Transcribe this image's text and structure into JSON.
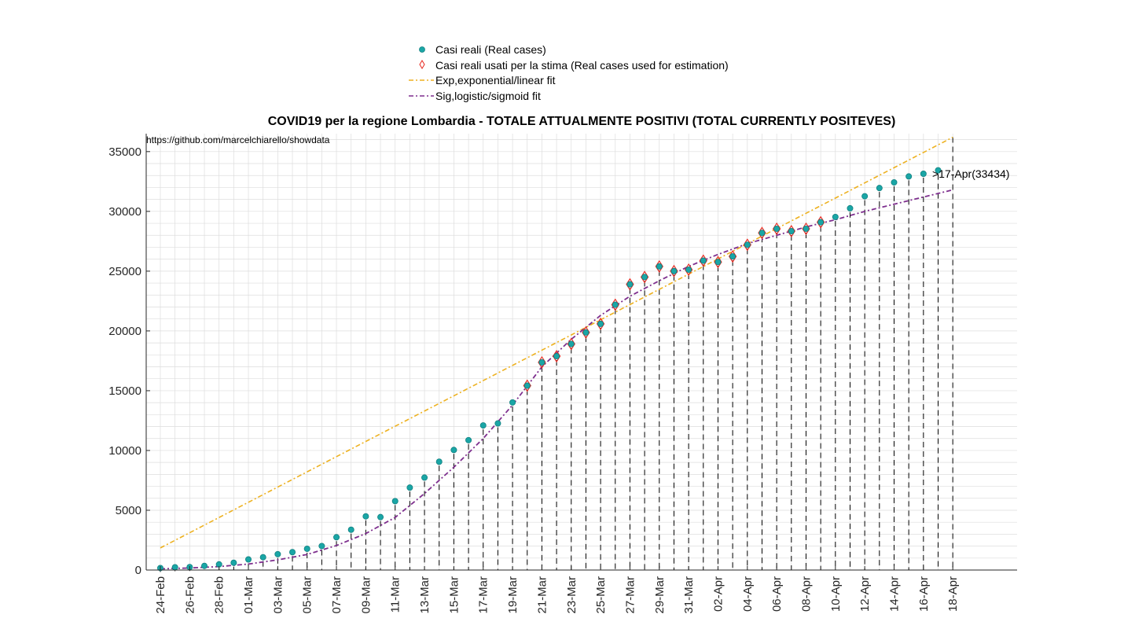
{
  "chart_data": {
    "type": "scatter",
    "title": "COVID19 per la regione Lombardia - TOTALE ATTUALMENTE POSITIVI (TOTAL CURRENTLY POSITEVES)",
    "source_note": "https://github.com/marcelchiarello/showdata",
    "annotation": ">17-Apr(33434)",
    "xlabel": "",
    "ylabel": "",
    "x_tick_labels": [
      "24-Feb",
      "26-Feb",
      "28-Feb",
      "01-Mar",
      "03-Mar",
      "05-Mar",
      "07-Mar",
      "09-Mar",
      "11-Mar",
      "13-Mar",
      "15-Mar",
      "17-Mar",
      "19-Mar",
      "21-Mar",
      "23-Mar",
      "25-Mar",
      "27-Mar",
      "29-Mar",
      "31-Mar",
      "02-Apr",
      "04-Apr",
      "06-Apr",
      "08-Apr",
      "10-Apr",
      "12-Apr",
      "14-Apr",
      "16-Apr",
      "18-Apr"
    ],
    "y_ticks": [
      0,
      5000,
      10000,
      15000,
      20000,
      25000,
      30000,
      35000
    ],
    "ylim": [
      0,
      36500
    ],
    "grid": true,
    "legend": {
      "placement": "top-center",
      "entries": [
        "Casi reali (Real cases)",
        "Casi reali usati per la stima (Real cases used for estimation)",
        "Exp,exponential/linear fit",
        "Sig,logistic/sigmoid fit"
      ]
    },
    "colors": {
      "real": "#1aa6a6",
      "estimation": "#e8281f",
      "exp_fit": "#edb120",
      "sig_fit": "#7e2f8e",
      "grid": "#dddddd",
      "axis": "#262626"
    },
    "series": [
      {
        "name": "Casi reali (Real cases)",
        "x": [
          "24-Feb",
          "25-Feb",
          "26-Feb",
          "27-Feb",
          "28-Feb",
          "29-Feb",
          "01-Mar",
          "02-Mar",
          "03-Mar",
          "04-Mar",
          "05-Mar",
          "06-Mar",
          "07-Mar",
          "08-Mar",
          "09-Mar",
          "10-Mar",
          "11-Mar",
          "12-Mar",
          "13-Mar",
          "14-Mar",
          "15-Mar",
          "16-Mar",
          "17-Mar",
          "18-Mar",
          "19-Mar",
          "20-Mar",
          "21-Mar",
          "22-Mar",
          "23-Mar",
          "24-Mar",
          "25-Mar",
          "26-Mar",
          "27-Mar",
          "28-Mar",
          "29-Mar",
          "30-Mar",
          "31-Mar",
          "01-Apr",
          "02-Apr",
          "03-Apr",
          "04-Apr",
          "05-Apr",
          "06-Apr",
          "07-Apr",
          "08-Apr",
          "09-Apr",
          "10-Apr",
          "11-Apr",
          "12-Apr",
          "13-Apr",
          "14-Apr",
          "15-Apr",
          "16-Apr",
          "17-Apr"
        ],
        "y": [
          166,
          231,
          249,
          349,
          474,
          611,
          887,
          1070,
          1326,
          1497,
          1777,
          2008,
          2742,
          3372,
          4490,
          4427,
          5763,
          6896,
          7732,
          9059,
          10043,
          10861,
          12095,
          12266,
          14019,
          15420,
          17370,
          17885,
          18910,
          19868,
          20591,
          22189,
          23895,
          24509,
          25392,
          25006,
          25124,
          25876,
          25765,
          26229,
          27206,
          28195,
          28545,
          28343,
          28545,
          29091,
          29530,
          30258,
          31265,
          31951,
          32426,
          32921,
          33145,
          33434
        ]
      },
      {
        "name": "Casi reali usati per la stima (Real cases used for estimation)",
        "x": [
          "20-Mar",
          "21-Mar",
          "22-Mar",
          "23-Mar",
          "24-Mar",
          "25-Mar",
          "26-Mar",
          "27-Mar",
          "28-Mar",
          "29-Mar",
          "30-Mar",
          "31-Mar",
          "01-Apr",
          "02-Apr",
          "03-Apr",
          "04-Apr",
          "05-Apr",
          "06-Apr",
          "07-Apr",
          "08-Apr",
          "09-Apr"
        ],
        "y": [
          15420,
          17370,
          17885,
          18910,
          19868,
          20591,
          22189,
          23895,
          24509,
          25392,
          25006,
          25124,
          25876,
          25765,
          26229,
          27206,
          28195,
          28545,
          28343,
          28545,
          29091
        ]
      },
      {
        "name": "Exp,exponential/linear fit",
        "x": [
          "24-Feb",
          "18-Apr"
        ],
        "y": [
          1850,
          36200
        ]
      },
      {
        "name": "Sig,logistic/sigmoid fit",
        "x": [
          "24-Feb",
          "26-Feb",
          "28-Feb",
          "01-Mar",
          "03-Mar",
          "05-Mar",
          "07-Mar",
          "09-Mar",
          "11-Mar",
          "13-Mar",
          "15-Mar",
          "17-Mar",
          "19-Mar",
          "21-Mar",
          "23-Mar",
          "25-Mar",
          "27-Mar",
          "29-Mar",
          "31-Mar",
          "02-Apr",
          "04-Apr",
          "06-Apr",
          "08-Apr",
          "10-Apr",
          "12-Apr",
          "14-Apr",
          "16-Apr",
          "18-Apr"
        ],
        "y": [
          100,
          170,
          290,
          500,
          850,
          1300,
          2050,
          3050,
          4400,
          6400,
          8600,
          11000,
          13800,
          17000,
          19300,
          21300,
          22900,
          24200,
          25400,
          26400,
          27300,
          28000,
          28700,
          29300,
          30000,
          30600,
          31200,
          31800
        ]
      }
    ]
  }
}
